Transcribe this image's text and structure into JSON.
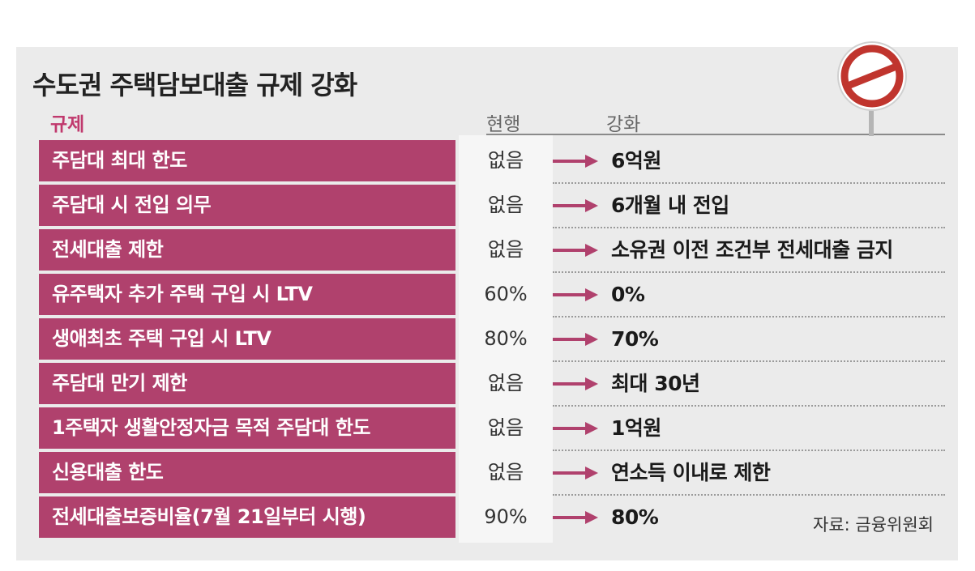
{
  "title": "수도권 주택담보대출 규제 강화",
  "headers": {
    "regulation": "규제",
    "current": "현행",
    "strengthened": "강화"
  },
  "rows": [
    {
      "label": "주담대 최대 한도",
      "current": "없음",
      "new": "6억원"
    },
    {
      "label": "주담대 시 전입 의무",
      "current": "없음",
      "new": "6개월 내 전입"
    },
    {
      "label": "전세대출 제한",
      "current": "없음",
      "new": "소유권 이전 조건부 전세대출 금지"
    },
    {
      "label": "유주택자 추가 주택 구입 시 LTV",
      "current": "60%",
      "new": "0%"
    },
    {
      "label": "생애최초 주택 구입 시 LTV",
      "current": "80%",
      "new": "70%"
    },
    {
      "label": "주담대 만기 제한",
      "current": "없음",
      "new": "최대 30년"
    },
    {
      "label": "1주택자 생활안정자금 목적 주담대 한도",
      "current": "없음",
      "new": "1억원"
    },
    {
      "label": "신용대출 한도",
      "current": "없음",
      "new": "연소득 이내로 제한"
    },
    {
      "label": "전세대출보증비율(7월 21일부터 시행)",
      "current": "90%",
      "new": "80%"
    }
  ],
  "source": "자료: 금융위원회",
  "icons": {
    "sign": "prohibition-sign-icon",
    "arrow": "right-arrow-icon"
  },
  "colors": {
    "accent": "#b0416d",
    "sign_red": "#c0352e"
  }
}
